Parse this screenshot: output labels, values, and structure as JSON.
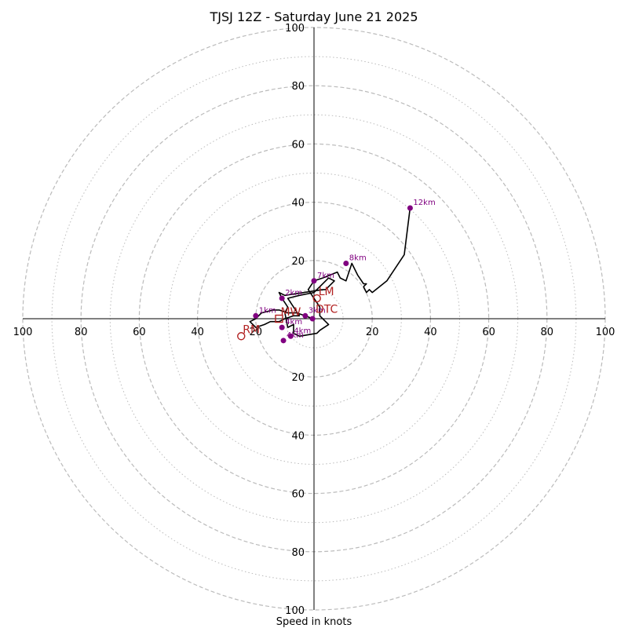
{
  "chart_data": {
    "type": "line",
    "title": "TJSJ 12Z - Saturday June 21 2025",
    "xlabel": "Speed in knots",
    "ylabel": "",
    "xlim": [
      -100,
      100
    ],
    "ylim": [
      -100,
      100
    ],
    "solid_rings": [
      20,
      40,
      60,
      80,
      100
    ],
    "dotted_rings": [
      10,
      30,
      50,
      70,
      90
    ],
    "tick_labels": {
      "x_negative": [
        "100",
        "80",
        "60",
        "40",
        "20"
      ],
      "x_positive": [
        "20",
        "40",
        "60",
        "80",
        "100"
      ],
      "y_positive": [
        "20",
        "40",
        "60",
        "80",
        "100"
      ],
      "y_negative": [
        "20",
        "40",
        "60",
        "80",
        "100"
      ]
    },
    "trace": {
      "u": [
        -0.5,
        -3,
        -6,
        -9,
        -12,
        -14,
        -18,
        -20,
        -22,
        -20,
        -17,
        -15,
        -12,
        -10,
        -7,
        -5,
        -7,
        -9,
        -5,
        0,
        2,
        5,
        7,
        4,
        3,
        -10,
        -12,
        -11,
        -9,
        -10,
        -9,
        -7,
        -7,
        -5,
        1,
        2,
        5,
        2,
        2,
        0,
        -2,
        0,
        3,
        8,
        9,
        11,
        13,
        15,
        17,
        18,
        17,
        18,
        19,
        20,
        25,
        31,
        33
      ],
      "v": [
        0,
        1,
        2,
        2,
        3,
        3,
        2,
        0,
        -1,
        -3,
        -2,
        -1,
        -1,
        0,
        1,
        1,
        4,
        7,
        8,
        9,
        11,
        14,
        13,
        10,
        10,
        8,
        9,
        7,
        4,
        2,
        -3,
        -2,
        -5,
        -6,
        -5,
        -4,
        -2,
        1,
        4,
        7,
        10,
        13,
        14,
        16,
        14,
        13,
        19,
        15,
        12,
        12,
        11,
        9,
        10,
        9,
        13,
        22,
        38
      ]
    },
    "height_markers": [
      {
        "label": "",
        "u": -0.5,
        "v": 0
      },
      {
        "label": "1km",
        "u": -20,
        "v": 1
      },
      {
        "label": "2km",
        "u": -11,
        "v": 7
      },
      {
        "label": "3km",
        "u": -3,
        "v": 1
      },
      {
        "label": "4km",
        "u": -8,
        "v": -6
      },
      {
        "label": "4km",
        "u": -11,
        "v": -3
      },
      {
        "label": "4km",
        "u": -10.5,
        "v": -7.5
      },
      {
        "label": "7km",
        "u": 0,
        "v": 13
      },
      {
        "label": "8km",
        "u": 11,
        "v": 19
      },
      {
        "label": "12km",
        "u": 33,
        "v": 38
      }
    ],
    "storm_motion": [
      {
        "label": "LM",
        "u": 1,
        "v": 7,
        "marker": "circle"
      },
      {
        "label": "RM",
        "u": -25,
        "v": -6,
        "marker": "circle"
      },
      {
        "label": "MW",
        "u": -12,
        "v": 0,
        "marker": "square"
      },
      {
        "label": "DTC",
        "u": 0,
        "v": 1,
        "marker": "none"
      }
    ],
    "colors": {
      "trace": "#000000",
      "markers": "#800080",
      "storm_motion": "#b22222",
      "rings": "#bbbbbb",
      "axes": "#000000"
    }
  }
}
